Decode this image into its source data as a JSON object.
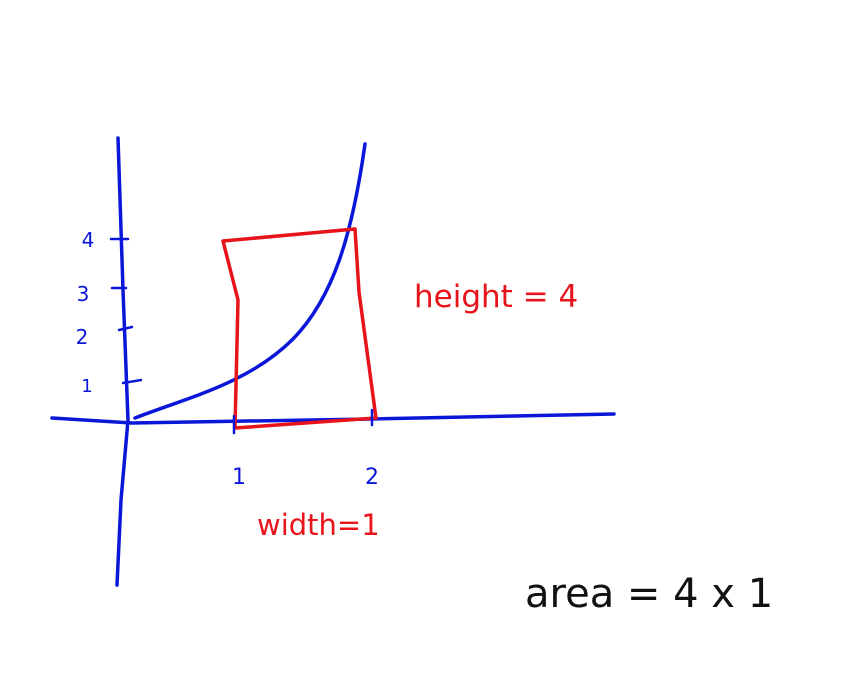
{
  "colors": {
    "axes": "#0a16d8",
    "rectangle": "#e8141b",
    "text": "#111111",
    "background": "#ffffff"
  },
  "y_axis": {
    "tick_labels": [
      "1",
      "2",
      "3",
      "4"
    ]
  },
  "x_axis": {
    "tick_labels": [
      "1",
      "2"
    ]
  },
  "annotations": {
    "height": "height = 4",
    "width": "width=1",
    "area": "area = 4 x 1"
  },
  "chart_data": {
    "type": "diagram",
    "curve": "exponential-like increasing curve",
    "rectangle": {
      "x_range": [
        1,
        2
      ],
      "height": 4
    }
  }
}
